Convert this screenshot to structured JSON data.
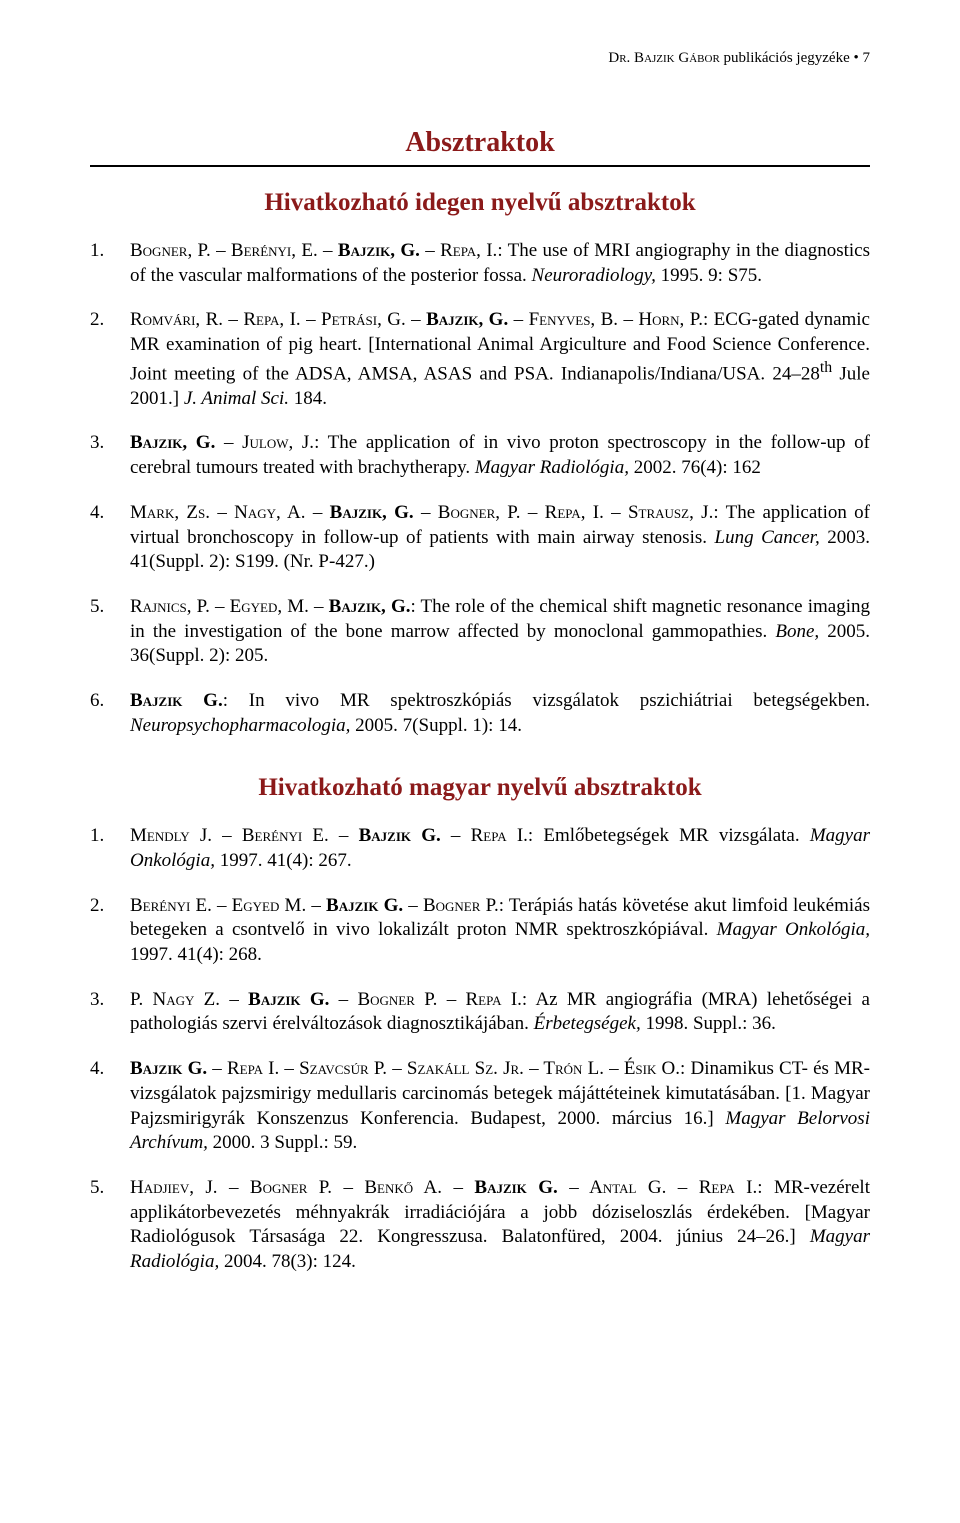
{
  "colors": {
    "heading": "#8b1a1a",
    "text": "#000000",
    "rule": "#000000",
    "background": "#ffffff"
  },
  "typography": {
    "body_fontsize_pt": 14,
    "heading_fontsize_pt": 21,
    "subheading_fontsize_pt": 19,
    "font_family": "Times New Roman"
  },
  "running_head": {
    "author_sc_prefix": "D",
    "author_sc_rest": "r. ",
    "author_name_sc1": "B",
    "author_name_rest1": "ajzik ",
    "author_name_sc2": "G",
    "author_name_rest2": "ábor",
    "suffix": " publikációs jegyzéke • 7"
  },
  "section1_title": "Absztraktok",
  "section1_subtitle": "Hivatkozható idegen nyelvű absztraktok",
  "section2_subtitle": "Hivatkozható magyar nyelvű absztraktok",
  "refs1": [
    {
      "num": "1.",
      "segments": [
        {
          "t": "Bogner, P. – Berényi, E. – ",
          "cls": "sc"
        },
        {
          "t": "Bajzik, G.",
          "cls": "sc b"
        },
        {
          "t": " – Repa, I.",
          "cls": "sc"
        },
        {
          "t": ": The use of MRI angiography in the diagnostics of the vascular malformations of the posterior fossa. ",
          "cls": ""
        },
        {
          "t": "Neuroradiology, ",
          "cls": "i"
        },
        {
          "t": "1995. 9: S75.",
          "cls": ""
        }
      ]
    },
    {
      "num": "2.",
      "segments": [
        {
          "t": "Romvári, R. – Repa, I. – Petrási, G. – ",
          "cls": "sc"
        },
        {
          "t": "Bajzik, G.",
          "cls": "sc b"
        },
        {
          "t": " – Fenyves, B. – Horn, P.",
          "cls": "sc"
        },
        {
          "t": ": ECG-gated dynamic MR examination of pig heart. [International Animal Argiculture and Food Science Conference. Joint meeting of the ADSA, AMSA, ASAS and PSA. Indianapolis/Indiana/USA. 24–28",
          "cls": ""
        },
        {
          "t": "th",
          "cls": "",
          "sup": true
        },
        {
          "t": " Jule 2001.] ",
          "cls": ""
        },
        {
          "t": "J. Animal Sci.",
          "cls": "i"
        },
        {
          "t": " 184.",
          "cls": ""
        }
      ]
    },
    {
      "num": "3.",
      "segments": [
        {
          "t": "Bajzik, G.",
          "cls": "sc b"
        },
        {
          "t": " – Julow, J.",
          "cls": "sc"
        },
        {
          "t": ": The application of in vivo proton spectroscopy in the follow-up of cerebral tumours treated with brachytherapy. ",
          "cls": ""
        },
        {
          "t": "Magyar Radiológia, ",
          "cls": "i"
        },
        {
          "t": "2002. 76(4): 162",
          "cls": ""
        }
      ]
    },
    {
      "num": "4.",
      "segments": [
        {
          "t": "Mark, Zs. – Nagy, A. – ",
          "cls": "sc"
        },
        {
          "t": "Bajzik, G.",
          "cls": "sc b"
        },
        {
          "t": " – Bogner, P. – Repa, I. – Strausz, J.",
          "cls": "sc"
        },
        {
          "t": ": The application of virtual bronchoscopy in follow-up of patients with main airway stenosis. ",
          "cls": ""
        },
        {
          "t": "Lung Cancer, ",
          "cls": "i"
        },
        {
          "t": "2003. 41(Suppl. 2): S199. (Nr. P-427.)",
          "cls": ""
        }
      ]
    },
    {
      "num": "5.",
      "segments": [
        {
          "t": "Rajnics, P. – Egyed, M. – ",
          "cls": "sc"
        },
        {
          "t": "Bajzik, G.",
          "cls": "sc b"
        },
        {
          "t": ": The role of the chemical shift magnetic resonance imaging in the investigation of the bone marrow affected by monoclonal gammopathies. ",
          "cls": ""
        },
        {
          "t": "Bone, ",
          "cls": "i"
        },
        {
          "t": "2005. 36(Suppl. 2): 205.",
          "cls": ""
        }
      ]
    },
    {
      "num": "6.",
      "segments": [
        {
          "t": "Bajzik G.",
          "cls": "sc b"
        },
        {
          "t": ": In vivo MR spektroszkópiás vizsgálatok pszichiátriai betegségekben. ",
          "cls": ""
        },
        {
          "t": "Neuropsychopharmacologia, ",
          "cls": "i"
        },
        {
          "t": "2005. 7(Suppl. 1): 14.",
          "cls": ""
        }
      ]
    }
  ],
  "refs2": [
    {
      "num": "1.",
      "segments": [
        {
          "t": "Mendly J. – Berényi E. – ",
          "cls": "sc"
        },
        {
          "t": "Bajzik G.",
          "cls": "sc b"
        },
        {
          "t": " – Repa I.",
          "cls": "sc"
        },
        {
          "t": ": Emlőbetegségek MR vizsgálata. ",
          "cls": ""
        },
        {
          "t": "Magyar Onkológia, ",
          "cls": "i"
        },
        {
          "t": "1997. 41(4): 267.",
          "cls": ""
        }
      ]
    },
    {
      "num": "2.",
      "segments": [
        {
          "t": "Berényi E. – Egyed M. – ",
          "cls": "sc"
        },
        {
          "t": "Bajzik G.",
          "cls": "sc b"
        },
        {
          "t": " – Bogner P.",
          "cls": "sc"
        },
        {
          "t": ": Terápiás hatás követése akut limfoid leukémiás betegeken a csontvelő in vivo lokalizált proton NMR spektroszkópiával. ",
          "cls": ""
        },
        {
          "t": "Magyar Onkológia, ",
          "cls": "i"
        },
        {
          "t": "1997. 41(4): 268.",
          "cls": ""
        }
      ]
    },
    {
      "num": "3.",
      "segments": [
        {
          "t": "P. Nagy Z. – ",
          "cls": "sc"
        },
        {
          "t": "Bajzik G.",
          "cls": "sc b"
        },
        {
          "t": " – Bogner P. – Repa I.",
          "cls": "sc"
        },
        {
          "t": ": Az MR angiográfia (MRA) lehetőségei a pathologiás szervi érelváltozások diagnosztikájában. ",
          "cls": ""
        },
        {
          "t": "Érbetegségek, ",
          "cls": "i"
        },
        {
          "t": "1998. Suppl.: 36.",
          "cls": ""
        }
      ]
    },
    {
      "num": "4.",
      "segments": [
        {
          "t": "Bajzik G.",
          "cls": "sc b"
        },
        {
          "t": " – Repa I. – Szavcsúr P. – Szakáll Sz. Jr. – Trón L. – Ésik O.",
          "cls": "sc"
        },
        {
          "t": ": Dinamikus CT- és MR-vizsgálatok pajzsmirigy medullaris carcinomás betegek májáttéteinek kimutatásában. [1. Magyar Pajzsmirigyrák Konszenzus Konferencia. Budapest, 2000. március 16.] ",
          "cls": ""
        },
        {
          "t": "Magyar Belorvosi Archívum, ",
          "cls": "i"
        },
        {
          "t": "2000. 3 Suppl.: 59.",
          "cls": ""
        }
      ]
    },
    {
      "num": "5.",
      "segments": [
        {
          "t": "Hadjiev, J. – Bogner P. – Benkő A. – ",
          "cls": "sc"
        },
        {
          "t": "Bajzik G.",
          "cls": "sc b"
        },
        {
          "t": " – Antal G. – Repa I.",
          "cls": "sc"
        },
        {
          "t": ": MR-vezérelt applikátorbevezetés méhnyakrák irradiációjára a jobb dóziseloszlás érdekében. [Magyar Radiológusok Társasága 22. Kongresszusa. Balatonfüred, 2004. június 24–26.] ",
          "cls": ""
        },
        {
          "t": "Magyar Radiológia, ",
          "cls": "i"
        },
        {
          "t": "2004. 78(3): 124.",
          "cls": ""
        }
      ]
    }
  ]
}
